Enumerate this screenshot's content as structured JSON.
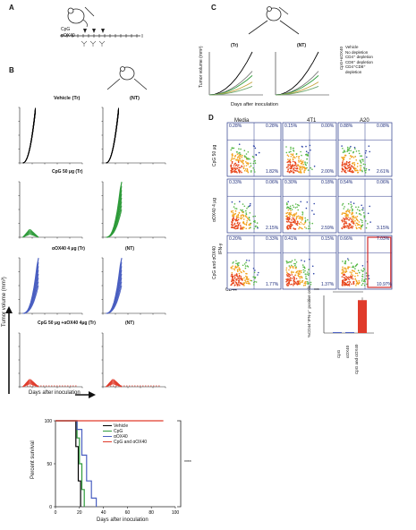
{
  "panels": {
    "A": {
      "label": "A",
      "cpg": "CpG",
      "ox40": "αOX40"
    },
    "B": {
      "label": "B",
      "title_vehicle": "Vehicle (Tr)",
      "title_nt": "(NT)",
      "title_cpg": "CpG 50 μg (Tr)",
      "title_ox": "αOX40 4 μg (Tr)",
      "title_combo": "CpG 50 μg +αOX40 4μg (Tr)",
      "ylabel": "Tumor volume (mm³)",
      "xlabel": "Days after inoculation"
    },
    "C": {
      "label": "C",
      "tr": "(Tr)",
      "nt": "(NT)",
      "ylabel": "Tumor volume (mm³)",
      "xlabel": "Days after inoculation",
      "side_label": "CpG+αOX40",
      "legend": [
        "Vehicle",
        "No depletion",
        "CD4⁺ depletion",
        "CD8⁺ depletion",
        "CD4⁺CD8⁺",
        "depletion"
      ]
    },
    "D": {
      "label": "D",
      "cols": [
        "Media",
        "4T1",
        "A20"
      ],
      "rows": [
        "CpG 50 μg",
        "αOX40 4 μg",
        "CpG and αOX40"
      ],
      "xaxis": "CD44",
      "yaxis": "IFN-γ",
      "quadrants": [
        [
          "0.28%",
          "0.28%",
          "1.82%",
          "0.15%",
          "0.00%",
          "2.00%",
          "0.88%",
          "0.08%",
          "2.61%"
        ],
        [
          "0.33%",
          "0.06%",
          "2.15%",
          "0.30%",
          "0.18%",
          "2.59%",
          "0.54%",
          "0.06%",
          "3.15%"
        ],
        [
          "0.20%",
          "0.33%",
          "1.77%",
          "0.41%",
          "0.15%",
          "1.37%",
          "0.66%",
          "7.03%",
          "10.97%"
        ]
      ],
      "bar_ylabel": "%CD44⁺IFN-γ⁺ positive cells",
      "bar_categories": [
        "CpG",
        "αOX40",
        "CpG and αOX40"
      ],
      "sig": "***"
    },
    "E": {
      "ylabel": "Percent survival",
      "xlabel": "Days after inoculation",
      "legend": [
        "Vehicle",
        "CpG",
        "αOX40",
        "CpG and αOX40"
      ],
      "sig": "****"
    }
  },
  "colors": {
    "vehicle": "#000000",
    "cpg": "#2e9b3a",
    "ox40": "#4a5fc1",
    "combo": "#e03a2a"
  },
  "chart_data": [
    {
      "type": "line",
      "panel": "survival",
      "ylabel": "Percent survival",
      "xlabel": "Days after inoculation",
      "xlim": [
        0,
        100
      ],
      "ylim": [
        0,
        100
      ],
      "series": [
        {
          "name": "Vehicle",
          "x": [
            0,
            17,
            17,
            19,
            19,
            21,
            21
          ],
          "y": [
            100,
            100,
            70,
            70,
            30,
            30,
            0
          ]
        },
        {
          "name": "CpG",
          "x": [
            0,
            18,
            18,
            20,
            20,
            22,
            22,
            24,
            24
          ],
          "y": [
            100,
            100,
            80,
            80,
            50,
            50,
            20,
            20,
            0
          ]
        },
        {
          "name": "αOX40",
          "x": [
            0,
            18,
            18,
            22,
            22,
            26,
            26,
            30,
            30,
            34,
            34
          ],
          "y": [
            100,
            100,
            90,
            90,
            60,
            60,
            30,
            30,
            10,
            10,
            0
          ]
        },
        {
          "name": "CpG and αOX40",
          "x": [
            0,
            90
          ],
          "y": [
            100,
            100
          ]
        }
      ]
    },
    {
      "type": "bar",
      "panel": "D-bar",
      "ylabel": "%CD44⁺IFN-γ⁺ positive cells",
      "categories": [
        "CpG",
        "αOX40",
        "CpG and αOX40"
      ],
      "values": [
        0.3,
        0.3,
        10.5
      ]
    }
  ]
}
